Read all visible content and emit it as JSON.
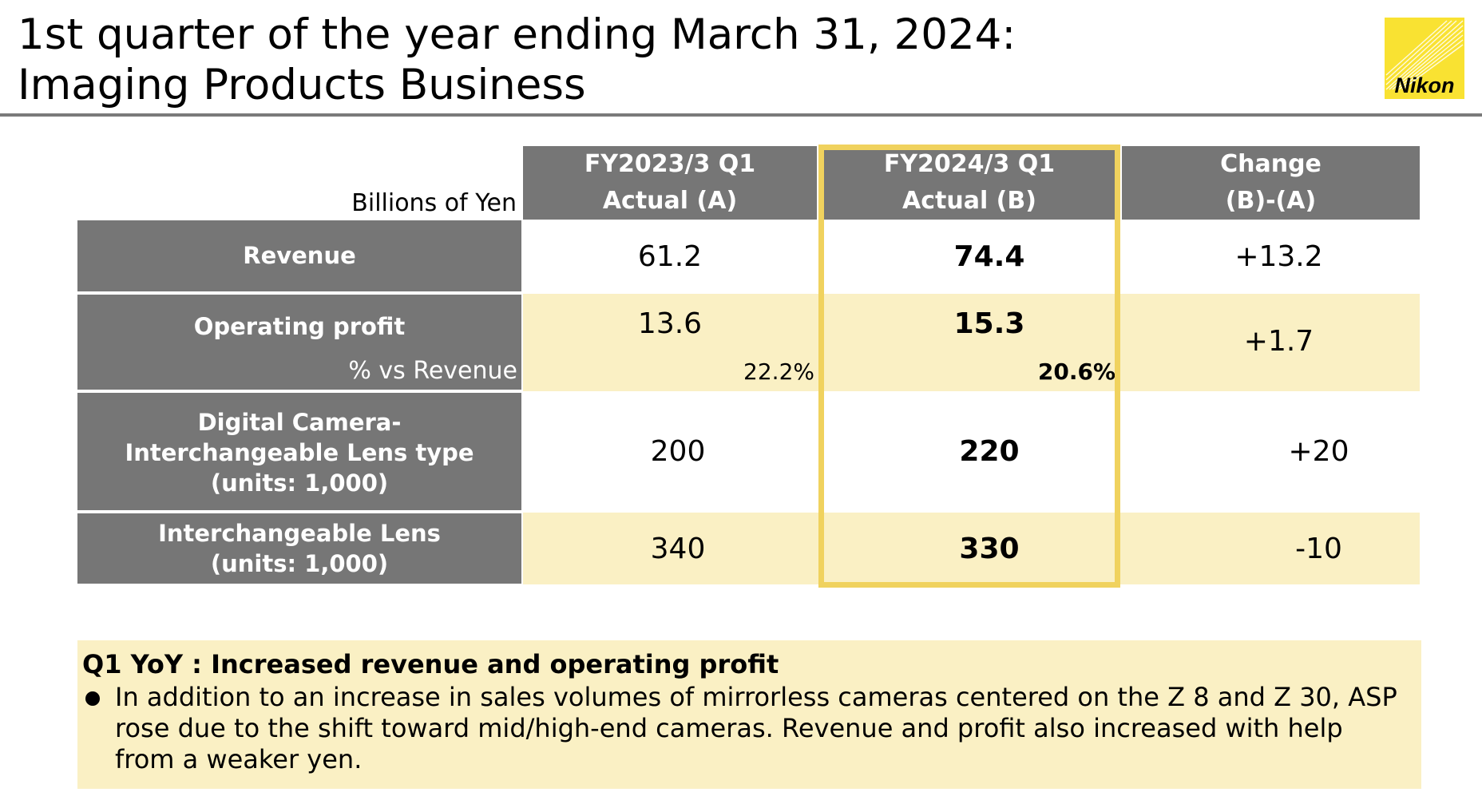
{
  "header": {
    "title_line1": "1st quarter of the year ending March 31, 2024:",
    "title_line2": "Imaging Products Business",
    "logo_text": "Nikon"
  },
  "table": {
    "units_label": "Billions of Yen",
    "columns": [
      {
        "line1": "FY2023/3 Q1",
        "line2": "Actual (A)"
      },
      {
        "line1": "FY2024/3 Q1",
        "line2": "Actual (B)"
      },
      {
        "line1": "Change",
        "line2": "(B)-(A)"
      }
    ],
    "rows": {
      "revenue": {
        "label": "Revenue",
        "a": "61.2",
        "b": "74.4",
        "change": "+13.2"
      },
      "operating_profit": {
        "label": "Operating profit",
        "sub_label": "% vs Revenue",
        "a": "13.6",
        "b": "15.3",
        "change": "+1.7",
        "a_pct": "22.2%",
        "b_pct": "20.6%"
      },
      "digital_camera": {
        "label_line1": "Digital Camera-",
        "label_line2": "Interchangeable Lens type",
        "label_line3": "(units: 1,000)",
        "a": "200",
        "b": "220",
        "change": "+20"
      },
      "interchangeable_lens": {
        "label_line1": "Interchangeable Lens",
        "label_line2": "(units: 1,000)",
        "a": "340",
        "b": "330",
        "change": "-10"
      }
    }
  },
  "summary": {
    "heading": "Q1 YoY : Increased revenue and operating profit",
    "bullet": "In addition to an increase in sales volumes of mirrorless cameras centered on the Z 8 and Z 30, ASP rose due to the shift toward mid/high-end cameras. Revenue and profit also increased with help from a weaker yen."
  },
  "colors": {
    "header_gray": "#767676",
    "band_yellow": "#faf0c4",
    "highlight_border": "#f0d25e",
    "logo_yellow": "#f9e232"
  }
}
